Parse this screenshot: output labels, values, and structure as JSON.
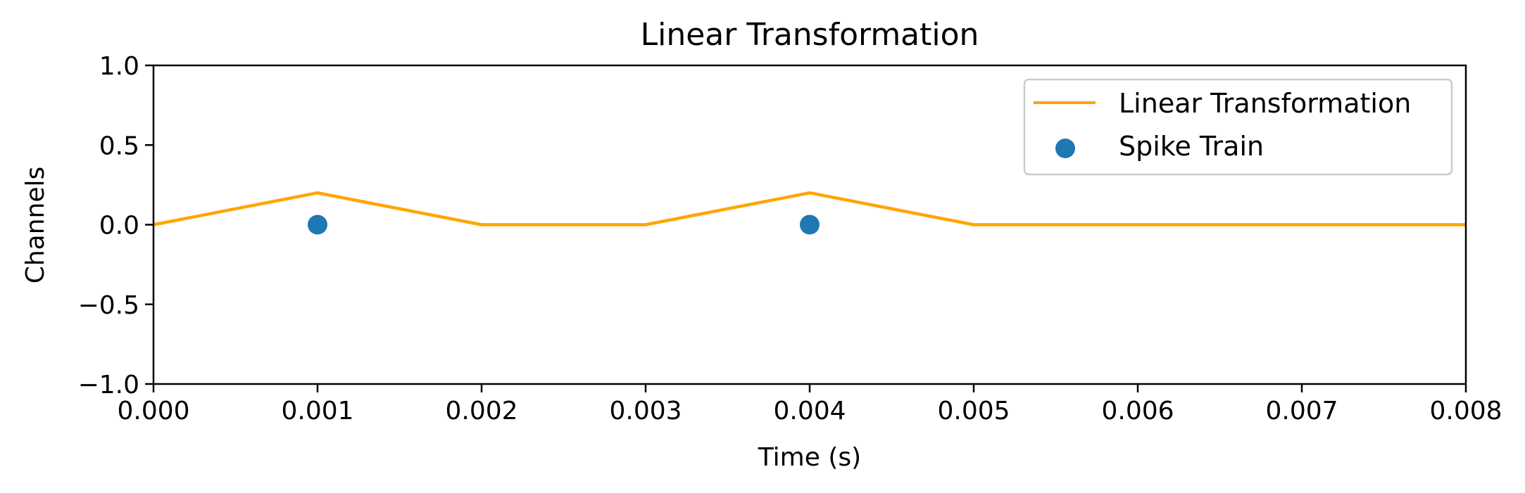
{
  "chart_data": {
    "type": "line",
    "title": "Linear Transformation",
    "xlabel": "Time (s)",
    "ylabel": "Channels",
    "xlim": [
      0.0,
      0.008
    ],
    "ylim": [
      -1.0,
      1.0
    ],
    "x_ticks": [
      "0.000",
      "0.001",
      "0.002",
      "0.003",
      "0.004",
      "0.005",
      "0.006",
      "0.007",
      "0.008"
    ],
    "y_ticks": [
      "1.0",
      "0.5",
      "0.0",
      "−0.5",
      "−1.0"
    ],
    "grid": false,
    "legend_position": "top-right",
    "series": [
      {
        "name": "Linear Transformation",
        "kind": "line",
        "color": "#FFA500",
        "x": [
          0.0,
          0.001,
          0.002,
          0.003,
          0.004,
          0.005,
          0.006,
          0.007,
          0.008
        ],
        "y": [
          0.0,
          0.2,
          0.0,
          0.0,
          0.2,
          0.0,
          0.0,
          0.0,
          0.0
        ]
      },
      {
        "name": "Spike Train",
        "kind": "scatter",
        "color": "#1F77B4",
        "x": [
          0.001,
          0.004
        ],
        "y": [
          0.0,
          0.0
        ]
      }
    ]
  }
}
